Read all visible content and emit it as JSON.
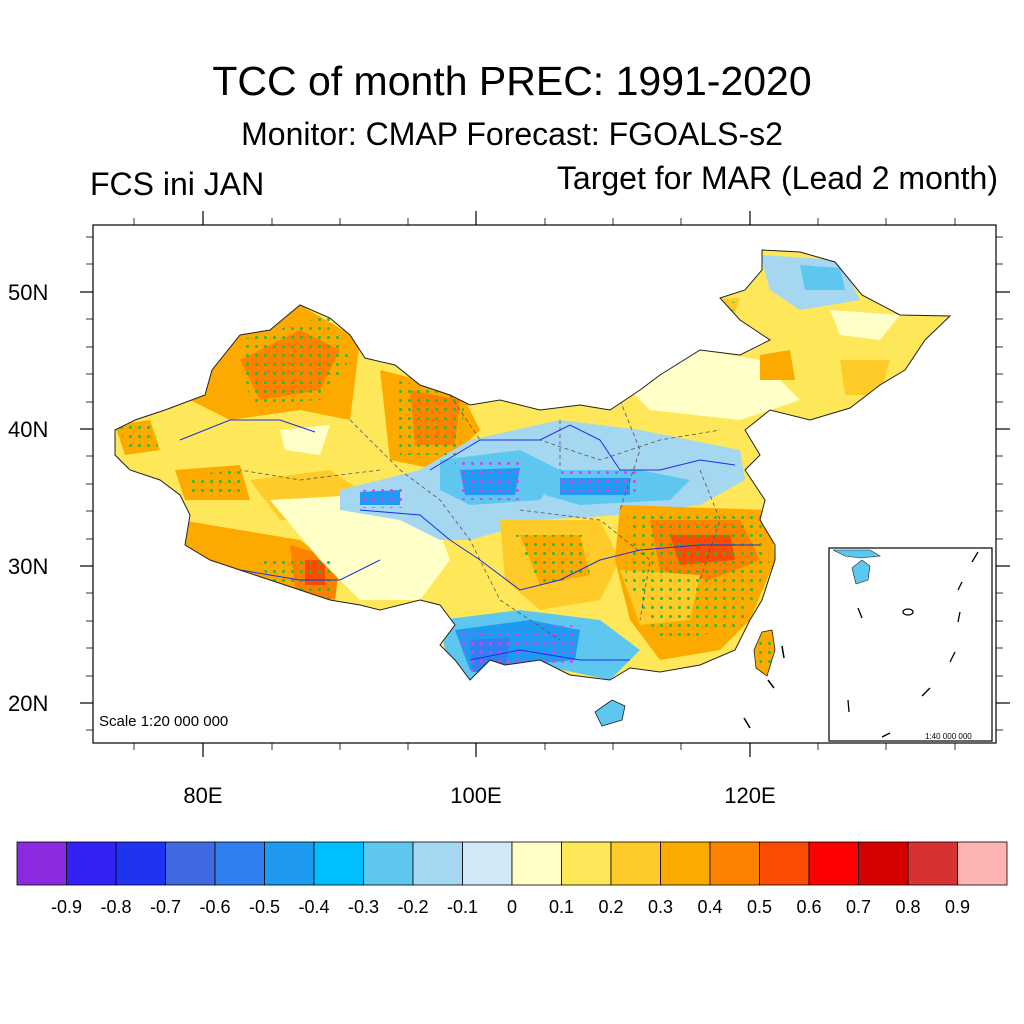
{
  "title": "TCC of month PREC: 1991-2020",
  "subtitle": "Monitor: CMAP   Forecast: FGOALS-s2",
  "left_label": "FCS ini JAN",
  "right_label": "Target for MAR (Lead 2 month)",
  "map": {
    "lat_ticks": [
      "50N",
      "40N",
      "30N",
      "20N"
    ],
    "lon_ticks": [
      "80E",
      "100E",
      "120E"
    ],
    "scale_main": "Scale 1:20 000 000",
    "scale_inset": "1:40 000 000"
  },
  "colorbar": {
    "labels": [
      "-0.9",
      "-0.8",
      "-0.7",
      "-0.6",
      "-0.5",
      "-0.4",
      "-0.3",
      "-0.2",
      "-0.1",
      "0",
      "0.1",
      "0.2",
      "0.3",
      "0.4",
      "0.5",
      "0.6",
      "0.7",
      "0.8",
      "0.9"
    ],
    "colors": [
      "#8a2be2",
      "#3222f5",
      "#1e34f0",
      "#4169e1",
      "#2f7ff0",
      "#1e9bf0",
      "#00bfff",
      "#5ec7f0",
      "#a6d7f0",
      "#d2eaf5",
      "#ffffc8",
      "#fee85a",
      "#fecb29",
      "#fdaa00",
      "#fc8200",
      "#fb4b05",
      "#ff0000",
      "#d70000",
      "#d73232",
      "#ffb4b4"
    ]
  }
}
